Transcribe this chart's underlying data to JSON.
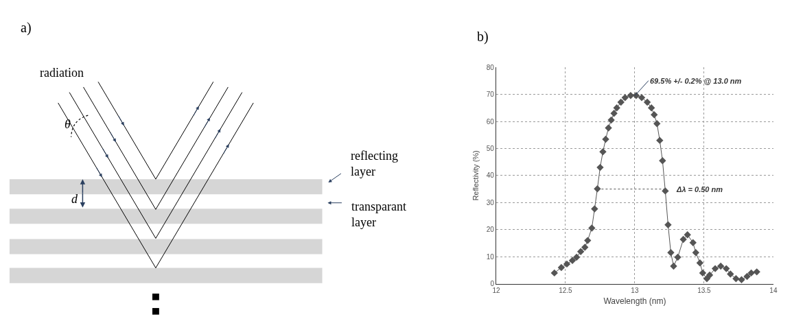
{
  "chart_data": [
    {
      "type": "other",
      "title": "a)",
      "annotations": [
        "radiation",
        "θ",
        "d",
        "reflecting layer",
        "transparant layer"
      ]
    },
    {
      "type": "line",
      "title": "b)",
      "xlabel": "Wavelength (nm)",
      "ylabel": "Reflectivity (%)",
      "x": [
        12.42,
        12.47,
        12.51,
        12.55,
        12.58,
        12.61,
        12.64,
        12.66,
        12.69,
        12.71,
        12.73,
        12.75,
        12.77,
        12.79,
        12.81,
        12.83,
        12.85,
        12.87,
        12.9,
        12.93,
        12.97,
        13.01,
        13.05,
        13.09,
        13.12,
        13.14,
        13.16,
        13.18,
        13.2,
        13.22,
        13.24,
        13.26,
        13.28,
        13.31,
        13.35,
        13.38,
        13.42,
        13.44,
        13.47,
        13.49,
        13.52,
        13.54,
        13.58,
        13.62,
        13.66,
        13.69,
        13.73,
        13.77,
        13.81,
        13.84,
        13.88
      ],
      "series": [
        {
          "color": "#555555",
          "marker": "diamond",
          "values": [
            4,
            6,
            7.3,
            8.6,
            9.8,
            11.9,
            13.5,
            16,
            20.6,
            27.7,
            35.1,
            43,
            48.8,
            53.4,
            57.6,
            60.5,
            63,
            65,
            67.1,
            68.8,
            69.6,
            69.6,
            68.8,
            67.1,
            65,
            62.5,
            59.2,
            53,
            45.5,
            34.3,
            21.8,
            11.5,
            6.5,
            9.8,
            16.4,
            18.1,
            15.2,
            11.5,
            7.7,
            4,
            1.9,
            3.2,
            5.6,
            6.5,
            5.6,
            3.6,
            1.9,
            1.5,
            2.7,
            4,
            4.4
          ]
        },
        {
          "color": "#555555",
          "marker": "none",
          "line_style": "dotted",
          "x": [
            12.73,
            13.22
          ],
          "values": [
            35,
            35
          ]
        }
      ],
      "xlim": [
        12,
        14
      ],
      "xticks": [
        12,
        12.5,
        13,
        13.5,
        14
      ],
      "ylim": [
        0,
        80
      ],
      "yticks": [
        0,
        10,
        20,
        30,
        40,
        50,
        60,
        70,
        80
      ],
      "grid": true,
      "line_style": "solid",
      "annotations": [
        {
          "text": "69.5% +/- 0.2% @ 13.0 nm",
          "x": 13.0,
          "y": 69.5
        },
        {
          "text": "Δλ = 0.50 nm",
          "x": 13.22,
          "y": 35
        }
      ]
    }
  ]
}
